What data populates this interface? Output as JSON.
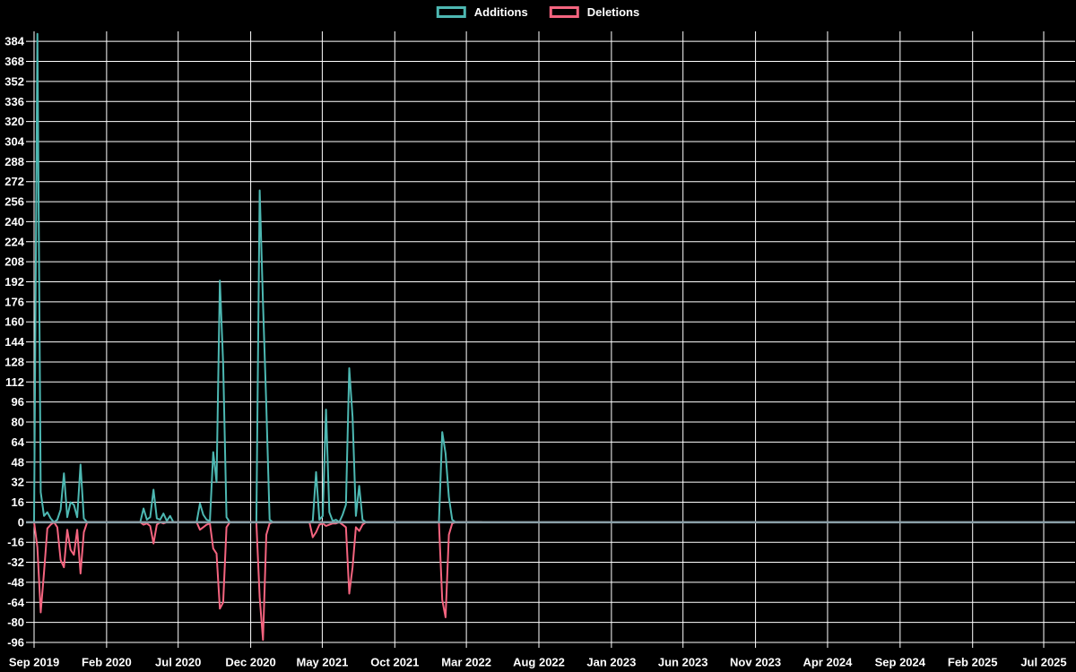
{
  "chart_data": {
    "type": "line",
    "title": "",
    "background": "#000000",
    "grid": true,
    "grid_color": "#ffffff",
    "zero_line_color": "#8ba0a8",
    "text_color": "#ffffff",
    "legend_position": "top",
    "x_axis": {
      "start": "2019-09-01",
      "end": "2025-07-01",
      "tick_step_months": 5,
      "tick_labels": [
        "Sep 2019",
        "Feb 2020",
        "Jul 2020",
        "Dec 2020",
        "May 2021",
        "Oct 2021",
        "Mar 2022",
        "Aug 2022",
        "Jan 2023",
        "Jun 2023",
        "Nov 2023",
        "Apr 2024",
        "Sep 2024",
        "Feb 2025",
        "Jul 2025"
      ]
    },
    "y_axis": {
      "min": -96,
      "max": 392,
      "tick_start": 384,
      "tick_step": 16,
      "tick_labels": [
        "384",
        "368",
        "352",
        "336",
        "320",
        "304",
        "288",
        "272",
        "256",
        "240",
        "224",
        "208",
        "192",
        "176",
        "160",
        "144",
        "128",
        "112",
        "96",
        "80",
        "64",
        "48",
        "32",
        "16",
        "0",
        "-16",
        "-32",
        "-48",
        "-64",
        "-80",
        "-96"
      ]
    },
    "x_dates": [
      "2019-09-01",
      "2019-09-08",
      "2019-09-15",
      "2019-09-22",
      "2019-09-29",
      "2019-10-06",
      "2019-10-13",
      "2019-10-20",
      "2019-10-27",
      "2019-11-03",
      "2019-11-10",
      "2019-11-17",
      "2019-11-24",
      "2019-12-01",
      "2019-12-08",
      "2019-12-15",
      "2019-12-22",
      "2020-04-12",
      "2020-04-19",
      "2020-04-26",
      "2020-05-03",
      "2020-05-10",
      "2020-05-17",
      "2020-05-24",
      "2020-05-31",
      "2020-06-07",
      "2020-06-14",
      "2020-06-21",
      "2020-08-09",
      "2020-08-16",
      "2020-08-23",
      "2020-08-30",
      "2020-09-06",
      "2020-09-13",
      "2020-09-20",
      "2020-09-27",
      "2020-10-04",
      "2020-10-11",
      "2020-10-18",
      "2020-12-13",
      "2020-12-20",
      "2020-12-27",
      "2021-01-03",
      "2021-01-10",
      "2021-01-17",
      "2021-04-04",
      "2021-04-11",
      "2021-04-18",
      "2021-04-25",
      "2021-05-02",
      "2021-05-09",
      "2021-05-16",
      "2021-05-23",
      "2021-05-30",
      "2021-06-06",
      "2021-06-13",
      "2021-06-20",
      "2021-06-27",
      "2021-07-04",
      "2021-07-11",
      "2021-07-18",
      "2021-07-25",
      "2021-08-01",
      "2022-01-02",
      "2022-01-09",
      "2022-01-16",
      "2022-01-23",
      "2022-01-30",
      "2022-02-06",
      "2022-04-03"
    ],
    "series": [
      {
        "name": "Additions",
        "color": "#4db8b2",
        "values": [
          0,
          390,
          24,
          5,
          8,
          3,
          0,
          2,
          10,
          39,
          4,
          16,
          14,
          4,
          46,
          3,
          0,
          0,
          11,
          2,
          4,
          26,
          3,
          2,
          7,
          1,
          5,
          0,
          0,
          15,
          6,
          2,
          1,
          56,
          32,
          193,
          126,
          4,
          0,
          0,
          265,
          175,
          93,
          2,
          0,
          0,
          1,
          40,
          2,
          5,
          90,
          8,
          1,
          2,
          0,
          6,
          14,
          123,
          84,
          5,
          29,
          2,
          0,
          0,
          72,
          55,
          20,
          2,
          0,
          0
        ]
      },
      {
        "name": "Deletions",
        "color": "#f4647f",
        "values": [
          0,
          -20,
          -72,
          -40,
          -5,
          -2,
          0,
          -4,
          -30,
          -36,
          -6,
          -22,
          -26,
          -6,
          -41,
          -8,
          0,
          0,
          -2,
          -1,
          -3,
          -17,
          -2,
          0,
          -1,
          0,
          0,
          0,
          0,
          -6,
          -4,
          -2,
          -1,
          -21,
          -25,
          -69,
          -64,
          -4,
          0,
          0,
          -60,
          -94,
          -10,
          -1,
          0,
          0,
          -12,
          -8,
          -2,
          -1,
          -3,
          -2,
          -1,
          -1,
          0,
          -2,
          -4,
          -57,
          -36,
          -4,
          -7,
          -2,
          0,
          0,
          -62,
          -76,
          -10,
          -1,
          0,
          0
        ]
      }
    ]
  }
}
